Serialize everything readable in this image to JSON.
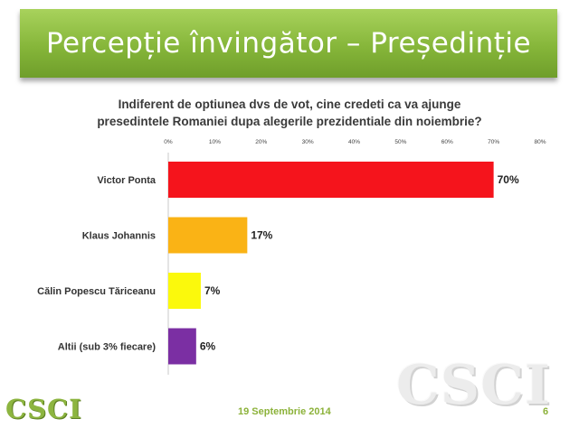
{
  "slide": {
    "title": "Percepție învingător – Președinție",
    "question_line1": "Indiferent de optiunea dvs de vot, cine credeti ca va ajunge",
    "question_line2": "presedintele Romaniei dupa alegerile prezidentiale din noiembrie?",
    "footer_date": "19 Septembrie 2014",
    "page_number": "6",
    "logo": "CSCI",
    "watermark": "CSCI"
  },
  "chart_data": {
    "type": "bar",
    "orientation": "horizontal",
    "categories": [
      "Victor Ponta",
      "Klaus Johannis",
      "Călin Popescu Tăriceanu",
      "Altii (sub 3% fiecare)"
    ],
    "values": [
      70,
      17,
      7,
      6
    ],
    "data_labels": [
      "70%",
      "17%",
      "7%",
      "6%"
    ],
    "colors": [
      "#f5141c",
      "#fab315",
      "#fbf90c",
      "#7b2fa3"
    ],
    "xlim": [
      0,
      80
    ],
    "ticks": [
      0,
      10,
      20,
      30,
      40,
      50,
      60,
      70,
      80
    ],
    "tick_labels": [
      "0%",
      "10%",
      "20%",
      "30%",
      "40%",
      "50%",
      "60%",
      "70%",
      "80%"
    ],
    "axis_position": "top",
    "grid": false,
    "legend": "none"
  }
}
